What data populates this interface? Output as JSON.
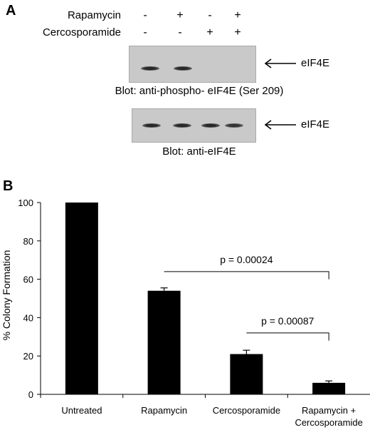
{
  "panel_a": {
    "label": "A",
    "treatments": [
      {
        "name": "Rapamycin",
        "signs": [
          "-",
          "+",
          "-",
          "+"
        ]
      },
      {
        "name": "Cercosporamide",
        "signs": [
          "-",
          "-",
          "+",
          "+"
        ]
      }
    ],
    "blots": [
      {
        "band_label": "eIF4E",
        "caption": "Blot: anti-phospho- eIF4E (Ser 209)",
        "lane_intensity": [
          1,
          1,
          0,
          0
        ]
      },
      {
        "band_label": "eIF4E",
        "caption": "Blot: anti-eIF4E",
        "lane_intensity": [
          1,
          1,
          1,
          0.9
        ]
      }
    ]
  },
  "panel_b": {
    "label": "B"
  },
  "chart_data": {
    "type": "bar",
    "ylabel": "% Colony Formation",
    "xlabel": "",
    "ylim": [
      0,
      100
    ],
    "yticks": [
      0,
      20,
      40,
      60,
      80,
      100
    ],
    "categories": [
      "Untreated",
      "Rapamycin",
      "Cercosporamide",
      "Rapamycin + Cercosporamide"
    ],
    "category_lines": [
      [
        "Untreated"
      ],
      [
        "Rapamycin"
      ],
      [
        "Cercosporamide"
      ],
      [
        "Rapamycin +",
        "Cercosporamide"
      ]
    ],
    "values": [
      100,
      54,
      21,
      6
    ],
    "errors": [
      0,
      1.5,
      2,
      1
    ],
    "bar_color": "#000000",
    "grid": false,
    "annotations": [
      {
        "text": "p = 0.00024",
        "from": 1,
        "to": 3,
        "y": 64
      },
      {
        "text": "p = 0.00087",
        "from": 2,
        "to": 3,
        "y": 32
      }
    ]
  }
}
